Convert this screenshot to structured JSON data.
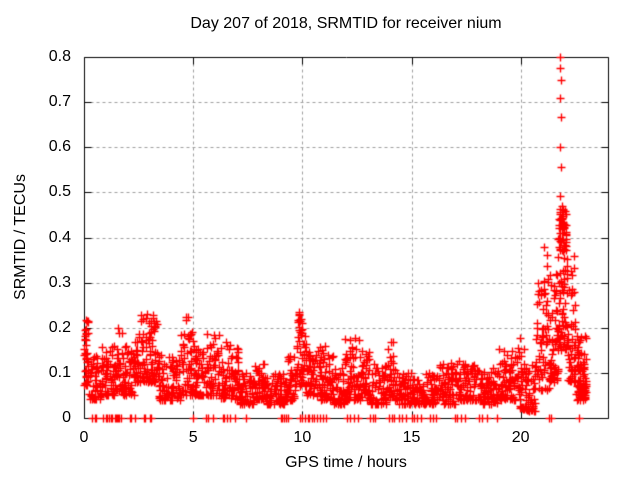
{
  "chart_data": {
    "type": "scatter",
    "title": "Day 207 of 2018, SRMTID for receiver nium",
    "xlabel": "GPS time / hours",
    "ylabel": "SRMTID / TECUs",
    "xlim": [
      0,
      24
    ],
    "ylim": [
      0,
      0.8
    ],
    "xticks": {
      "values": [
        0,
        5,
        10,
        15,
        20
      ],
      "labels": [
        "0",
        "5",
        "10",
        "15",
        "20"
      ]
    },
    "yticks": {
      "values": [
        0,
        0.1,
        0.2,
        0.3,
        0.4,
        0.5,
        0.6,
        0.7,
        0.8
      ],
      "labels": [
        "0",
        "0.1",
        "0.2",
        "0.3",
        "0.4",
        "0.5",
        "0.6",
        "0.7",
        "0.8"
      ]
    },
    "grid": {
      "show": true,
      "style": "dashed",
      "color": "#9e9e9e"
    },
    "border_color": "#000000",
    "marker": {
      "shape": "plus",
      "color": "#ff0000",
      "size": 9
    },
    "legend": "none",
    "generator": {
      "seed": 1234,
      "comment": "segments are [x0_hours, x1_hours, y_min_TECU, y_max_TECU, n_points, optional_skew]; dense baseline 0.05-0.15 with local peaks; big disturbance 20.7-23.0h",
      "segments": [
        [
          0.0,
          0.18,
          0.07,
          0.22,
          22
        ],
        [
          0.02,
          0.15,
          0.12,
          0.2,
          14,
          1.0
        ],
        [
          0.18,
          0.8,
          0.04,
          0.14,
          55
        ],
        [
          0.8,
          1.4,
          0.05,
          0.16,
          55
        ],
        [
          1.4,
          1.8,
          0.06,
          0.21,
          38
        ],
        [
          1.8,
          2.3,
          0.05,
          0.16,
          45
        ],
        [
          2.3,
          3.4,
          0.08,
          0.22,
          105
        ],
        [
          2.6,
          3.35,
          0.17,
          0.235,
          14,
          1.0
        ],
        [
          3.4,
          4.4,
          0.04,
          0.14,
          85
        ],
        [
          4.4,
          5.0,
          0.05,
          0.2,
          55
        ],
        [
          4.55,
          4.8,
          0.17,
          0.225,
          6,
          1.0
        ],
        [
          5.0,
          5.6,
          0.05,
          0.16,
          55
        ],
        [
          5.6,
          6.2,
          0.05,
          0.19,
          55
        ],
        [
          6.2,
          7.1,
          0.04,
          0.17,
          80
        ],
        [
          7.1,
          7.8,
          0.03,
          0.1,
          60
        ],
        [
          7.8,
          8.3,
          0.04,
          0.12,
          45
        ],
        [
          8.3,
          9.3,
          0.03,
          0.1,
          85
        ],
        [
          9.3,
          9.7,
          0.04,
          0.14,
          35
        ],
        [
          9.7,
          10.15,
          0.07,
          0.22,
          48
        ],
        [
          9.82,
          10.02,
          0.18,
          0.237,
          8,
          1.0
        ],
        [
          10.15,
          10.6,
          0.05,
          0.15,
          40
        ],
        [
          10.6,
          11.4,
          0.04,
          0.16,
          70
        ],
        [
          11.4,
          11.9,
          0.03,
          0.11,
          45
        ],
        [
          11.9,
          12.6,
          0.04,
          0.18,
          65
        ],
        [
          12.6,
          13.1,
          0.04,
          0.15,
          45
        ],
        [
          13.1,
          13.9,
          0.03,
          0.12,
          70
        ],
        [
          13.9,
          14.35,
          0.04,
          0.18,
          40
        ],
        [
          14.35,
          15.2,
          0.03,
          0.11,
          75
        ],
        [
          15.2,
          16.2,
          0.03,
          0.1,
          85
        ],
        [
          16.2,
          17.2,
          0.03,
          0.13,
          85
        ],
        [
          17.2,
          18.2,
          0.04,
          0.12,
          85
        ],
        [
          18.2,
          19.0,
          0.03,
          0.11,
          70
        ],
        [
          19.0,
          19.8,
          0.04,
          0.16,
          70
        ],
        [
          19.8,
          20.25,
          0.02,
          0.18,
          45
        ],
        [
          20.25,
          20.7,
          0.015,
          0.12,
          40
        ],
        [
          20.7,
          21.3,
          0.06,
          0.3,
          60
        ],
        [
          21.05,
          21.25,
          0.18,
          0.38,
          14,
          1.0
        ],
        [
          21.3,
          21.7,
          0.08,
          0.32,
          55
        ],
        [
          21.7,
          22.15,
          0.15,
          0.4,
          65
        ],
        [
          21.75,
          22.1,
          0.37,
          0.465,
          48,
          1.0
        ],
        [
          22.15,
          22.5,
          0.08,
          0.36,
          48
        ],
        [
          22.45,
          23.0,
          0.04,
          0.2,
          65
        ],
        [
          22.6,
          22.95,
          0.05,
          0.12,
          45
        ]
      ],
      "outliers": [
        [
          21.82,
          0.8
        ],
        [
          21.82,
          0.776
        ],
        [
          21.83,
          0.748
        ],
        [
          21.81,
          0.71
        ],
        [
          21.85,
          0.666
        ],
        [
          21.81,
          0.601
        ],
        [
          21.84,
          0.556
        ],
        [
          21.78,
          0.492
        ],
        [
          21.9,
          0.47
        ]
      ],
      "zero_rug_x": [
        0.35,
        0.5,
        0.55,
        0.85,
        1.0,
        1.05,
        1.15,
        1.25,
        1.3,
        1.4,
        1.45,
        1.5,
        1.55,
        1.6,
        1.7,
        2.1,
        2.15,
        2.35,
        2.75,
        2.8,
        3.0,
        3.05,
        5.0,
        5.6,
        5.7,
        5.9,
        6.35,
        6.4,
        6.55,
        6.7,
        6.9,
        7.4,
        9.0,
        9.05,
        9.15,
        9.25,
        9.35,
        9.9,
        10.0,
        10.1,
        10.25,
        10.3,
        10.45,
        10.55,
        10.65,
        10.8,
        10.95,
        11.1,
        12.05,
        12.2,
        12.35,
        12.55,
        13.1,
        13.25,
        13.35,
        13.95,
        14.1,
        14.2,
        14.45,
        14.55,
        14.75,
        15.0,
        15.1,
        15.25,
        15.45,
        15.85,
        16.0,
        16.1,
        17.0,
        17.1,
        17.25,
        17.45,
        18.1,
        18.25,
        18.45,
        18.9,
        21.3,
        21.4,
        22.65
      ]
    }
  }
}
